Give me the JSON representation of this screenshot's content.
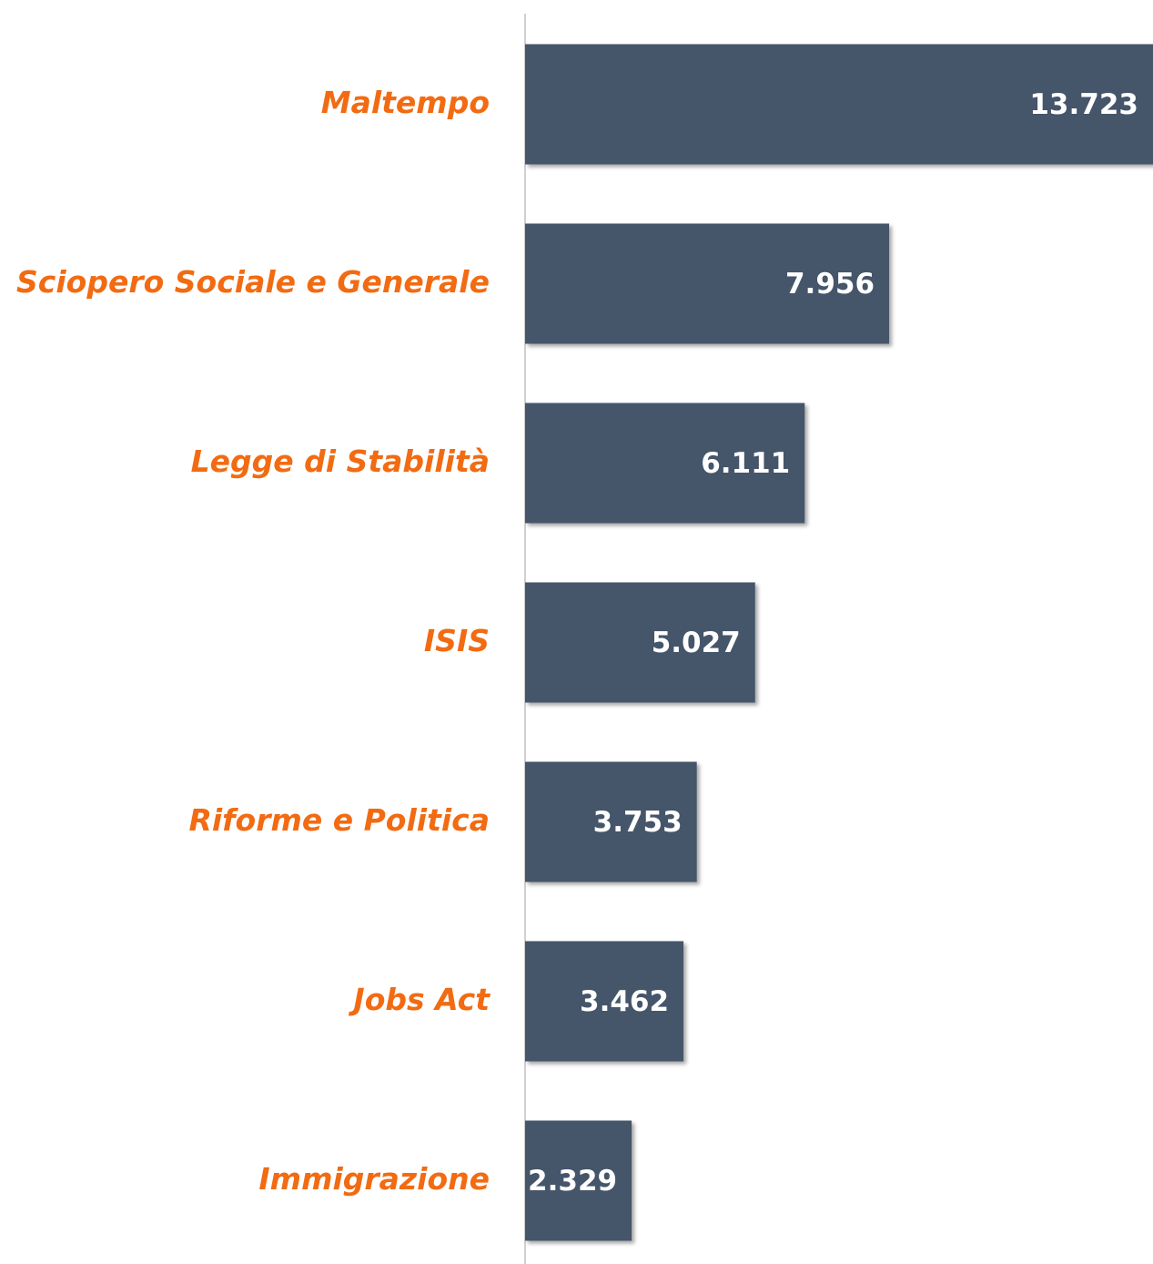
{
  "chart_data": {
    "type": "bar",
    "orientation": "horizontal",
    "categories": [
      "Maltempo",
      "Sciopero Sociale e Generale",
      "Legge di Stabilità",
      "ISIS",
      "Riforme e Politica",
      "Jobs Act",
      "Immigrazione"
    ],
    "values": [
      13723,
      7956,
      6111,
      5027,
      3753,
      3462,
      2329
    ],
    "value_labels": [
      "13.723",
      "7.956",
      "6.111",
      "5.027",
      "3.753",
      "3.462",
      "2.329"
    ],
    "color": "#44546a",
    "label_color": "#f26b12"
  }
}
